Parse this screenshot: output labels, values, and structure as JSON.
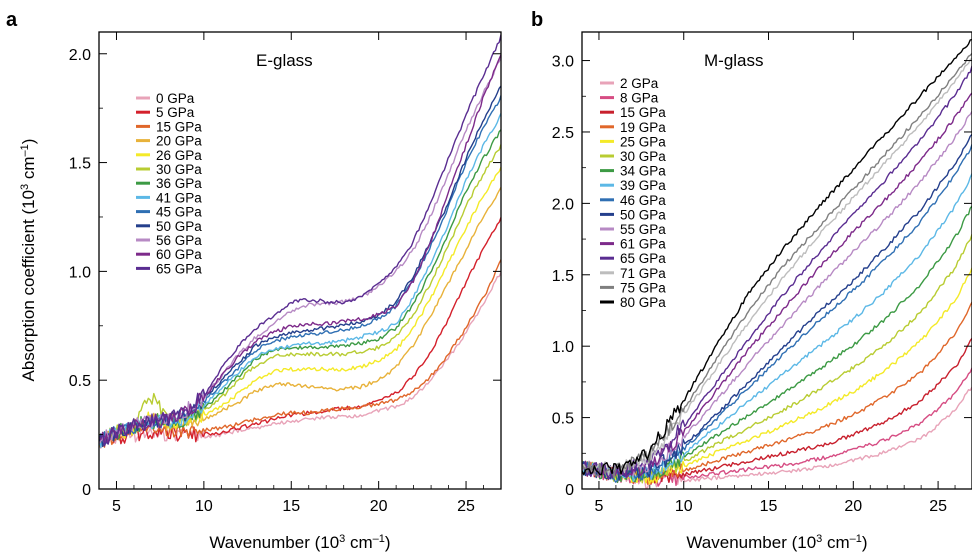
{
  "chart_data": [
    {
      "type": "line",
      "panel_label": "a",
      "title": "E-glass",
      "xlabel": "Wavenumber (10^3 cm^-1)",
      "ylabel": "Absorption coefficient (10^3 cm^-1)",
      "xlim": [
        4,
        27
      ],
      "ylim": [
        0,
        2.1
      ],
      "xticks": [
        5,
        10,
        15,
        20,
        25
      ],
      "yticks": [
        0,
        0.5,
        1.0,
        1.5,
        2.0
      ],
      "ytick_labels": [
        "0",
        "0.5",
        "1.0",
        "1.5",
        "2.0"
      ],
      "grid": false,
      "legend_position": "upper-left",
      "x": [
        4,
        5,
        6,
        7,
        8,
        9,
        10,
        11,
        12,
        13,
        14,
        15,
        16,
        17,
        18,
        19,
        20,
        21,
        22,
        23,
        24,
        25,
        26,
        27
      ],
      "series": [
        {
          "name": "0 GPa",
          "color": "#e8a3b8",
          "values": [
            0.22,
            0.24,
            0.25,
            0.26,
            0.25,
            0.24,
            0.24,
            0.25,
            0.27,
            0.28,
            0.3,
            0.31,
            0.32,
            0.33,
            0.33,
            0.34,
            0.36,
            0.38,
            0.42,
            0.5,
            0.6,
            0.72,
            0.85,
            1.0
          ]
        },
        {
          "name": "5 GPa",
          "color": "#d4202b",
          "values": [
            0.22,
            0.24,
            0.25,
            0.26,
            0.25,
            0.25,
            0.25,
            0.26,
            0.28,
            0.3,
            0.32,
            0.34,
            0.35,
            0.36,
            0.37,
            0.38,
            0.4,
            0.44,
            0.52,
            0.63,
            0.78,
            0.95,
            1.1,
            1.25
          ]
        },
        {
          "name": "15 GPa",
          "color": "#e0672a",
          "values": [
            0.22,
            0.24,
            0.26,
            0.27,
            0.26,
            0.26,
            0.27,
            0.28,
            0.3,
            0.32,
            0.34,
            0.35,
            0.35,
            0.36,
            0.37,
            0.38,
            0.39,
            0.41,
            0.45,
            0.52,
            0.62,
            0.74,
            0.88,
            1.05
          ]
        },
        {
          "name": "20 GPa",
          "color": "#e8b23a",
          "values": [
            0.22,
            0.25,
            0.28,
            0.32,
            0.3,
            0.3,
            0.32,
            0.36,
            0.4,
            0.45,
            0.48,
            0.48,
            0.47,
            0.46,
            0.46,
            0.47,
            0.5,
            0.56,
            0.66,
            0.8,
            0.95,
            1.1,
            1.25,
            1.38
          ]
        },
        {
          "name": "26 GPa",
          "color": "#f4ea28",
          "values": [
            0.22,
            0.25,
            0.28,
            0.33,
            0.31,
            0.31,
            0.34,
            0.38,
            0.44,
            0.5,
            0.54,
            0.55,
            0.55,
            0.55,
            0.55,
            0.56,
            0.59,
            0.64,
            0.74,
            0.88,
            1.04,
            1.2,
            1.35,
            1.48
          ]
        },
        {
          "name": "30 GPa",
          "color": "#b8cc32",
          "values": [
            0.22,
            0.26,
            0.3,
            0.42,
            0.33,
            0.32,
            0.36,
            0.42,
            0.5,
            0.57,
            0.61,
            0.62,
            0.62,
            0.62,
            0.62,
            0.63,
            0.65,
            0.7,
            0.8,
            0.95,
            1.12,
            1.3,
            1.45,
            1.58
          ]
        },
        {
          "name": "36 GPa",
          "color": "#3c9a44",
          "values": [
            0.22,
            0.26,
            0.29,
            0.31,
            0.31,
            0.32,
            0.37,
            0.44,
            0.52,
            0.6,
            0.64,
            0.65,
            0.65,
            0.65,
            0.66,
            0.67,
            0.69,
            0.74,
            0.85,
            1.0,
            1.18,
            1.37,
            1.52,
            1.65
          ]
        },
        {
          "name": "41 GPa",
          "color": "#5cb8e6",
          "values": [
            0.22,
            0.26,
            0.29,
            0.31,
            0.31,
            0.33,
            0.39,
            0.46,
            0.54,
            0.61,
            0.64,
            0.66,
            0.67,
            0.67,
            0.68,
            0.7,
            0.72,
            0.76,
            0.88,
            1.04,
            1.22,
            1.42,
            1.58,
            1.72
          ]
        },
        {
          "name": "45 GPa",
          "color": "#2f6fb3",
          "values": [
            0.22,
            0.26,
            0.29,
            0.31,
            0.32,
            0.34,
            0.4,
            0.48,
            0.56,
            0.64,
            0.68,
            0.7,
            0.71,
            0.72,
            0.73,
            0.75,
            0.78,
            0.84,
            0.96,
            1.12,
            1.3,
            1.5,
            1.66,
            1.8
          ]
        },
        {
          "name": "50 GPa",
          "color": "#243f8c",
          "values": [
            0.22,
            0.26,
            0.29,
            0.31,
            0.32,
            0.35,
            0.41,
            0.5,
            0.58,
            0.66,
            0.7,
            0.72,
            0.73,
            0.74,
            0.75,
            0.77,
            0.8,
            0.86,
            0.98,
            1.14,
            1.32,
            1.52,
            1.7,
            1.85
          ]
        },
        {
          "name": "56 GPa",
          "color": "#b78ac4",
          "values": [
            0.22,
            0.26,
            0.29,
            0.31,
            0.32,
            0.36,
            0.42,
            0.52,
            0.62,
            0.7,
            0.76,
            0.82,
            0.85,
            0.85,
            0.86,
            0.88,
            0.93,
            1.0,
            1.1,
            1.26,
            1.45,
            1.65,
            1.82,
            1.98
          ]
        },
        {
          "name": "60 GPa",
          "color": "#7d2a8a",
          "values": [
            0.22,
            0.26,
            0.29,
            0.31,
            0.32,
            0.36,
            0.42,
            0.52,
            0.61,
            0.68,
            0.72,
            0.75,
            0.76,
            0.76,
            0.77,
            0.78,
            0.8,
            0.84,
            0.96,
            1.14,
            1.36,
            1.58,
            1.8,
            2.0
          ]
        },
        {
          "name": "65 GPa",
          "color": "#5a2d91",
          "values": [
            0.22,
            0.26,
            0.29,
            0.31,
            0.32,
            0.36,
            0.43,
            0.55,
            0.66,
            0.74,
            0.8,
            0.86,
            0.87,
            0.86,
            0.86,
            0.88,
            0.94,
            1.02,
            1.14,
            1.32,
            1.52,
            1.72,
            1.9,
            2.08
          ]
        }
      ]
    },
    {
      "type": "line",
      "panel_label": "b",
      "title": "M-glass",
      "xlabel": "Wavenumber (10^3 cm^-1)",
      "ylabel": "",
      "xlim": [
        4,
        27
      ],
      "ylim": [
        0,
        3.2
      ],
      "xticks": [
        5,
        10,
        15,
        20,
        25
      ],
      "yticks": [
        0,
        0.5,
        1.0,
        1.5,
        2.0,
        2.5,
        3.0
      ],
      "ytick_labels": [
        "0",
        "0.5",
        "1.0",
        "1.5",
        "2.0",
        "2.5",
        "3.0"
      ],
      "grid": false,
      "legend_position": "upper-left",
      "x": [
        4,
        6,
        8,
        10,
        12,
        14,
        16,
        18,
        20,
        22,
        24,
        26,
        27
      ],
      "series": [
        {
          "name": "2 GPa",
          "color": "#e8a3b8",
          "values": [
            0.15,
            0.1,
            0.05,
            0.06,
            0.08,
            0.1,
            0.12,
            0.15,
            0.2,
            0.26,
            0.35,
            0.55,
            0.72
          ]
        },
        {
          "name": "8 GPa",
          "color": "#d64d83",
          "values": [
            0.15,
            0.1,
            0.06,
            0.08,
            0.11,
            0.14,
            0.17,
            0.21,
            0.27,
            0.35,
            0.46,
            0.66,
            0.85
          ]
        },
        {
          "name": "15 GPa",
          "color": "#c8202d",
          "values": [
            0.15,
            0.1,
            0.07,
            0.1,
            0.15,
            0.2,
            0.25,
            0.3,
            0.38,
            0.48,
            0.62,
            0.85,
            1.05
          ]
        },
        {
          "name": "19 GPa",
          "color": "#e0672a",
          "values": [
            0.15,
            0.1,
            0.08,
            0.13,
            0.2,
            0.27,
            0.34,
            0.42,
            0.52,
            0.65,
            0.82,
            1.08,
            1.3
          ]
        },
        {
          "name": "25 GPa",
          "color": "#f4ea28",
          "values": [
            0.15,
            0.1,
            0.08,
            0.16,
            0.26,
            0.35,
            0.45,
            0.56,
            0.68,
            0.84,
            1.04,
            1.32,
            1.55
          ]
        },
        {
          "name": "30 GPa",
          "color": "#b8cc32",
          "values": [
            0.15,
            0.1,
            0.09,
            0.19,
            0.32,
            0.44,
            0.56,
            0.7,
            0.85,
            1.02,
            1.24,
            1.55,
            1.78
          ]
        },
        {
          "name": "34 GPa",
          "color": "#3c9a44",
          "values": [
            0.15,
            0.1,
            0.1,
            0.22,
            0.38,
            0.53,
            0.68,
            0.84,
            1.01,
            1.2,
            1.44,
            1.76,
            1.98
          ]
        },
        {
          "name": "39 GPa",
          "color": "#5cb8e6",
          "values": [
            0.15,
            0.1,
            0.11,
            0.25,
            0.44,
            0.63,
            0.82,
            1.0,
            1.19,
            1.4,
            1.65,
            1.98,
            2.2
          ]
        },
        {
          "name": "46 GPa",
          "color": "#2f6fb3",
          "values": [
            0.15,
            0.1,
            0.12,
            0.28,
            0.5,
            0.73,
            0.96,
            1.18,
            1.39,
            1.62,
            1.88,
            2.2,
            2.4
          ]
        },
        {
          "name": "50 GPa",
          "color": "#243f8c",
          "values": [
            0.15,
            0.1,
            0.13,
            0.3,
            0.53,
            0.77,
            1.01,
            1.24,
            1.46,
            1.7,
            1.96,
            2.28,
            2.48
          ]
        },
        {
          "name": "55 GPa",
          "color": "#b78ac4",
          "values": [
            0.15,
            0.11,
            0.15,
            0.36,
            0.63,
            0.91,
            1.17,
            1.42,
            1.66,
            1.9,
            2.16,
            2.46,
            2.64
          ]
        },
        {
          "name": "61 GPa",
          "color": "#7d2a8a",
          "values": [
            0.15,
            0.11,
            0.16,
            0.4,
            0.7,
            1.0,
            1.28,
            1.55,
            1.8,
            2.04,
            2.3,
            2.6,
            2.78
          ]
        },
        {
          "name": "65 GPa",
          "color": "#5a2d91",
          "values": [
            0.15,
            0.12,
            0.18,
            0.44,
            0.76,
            1.08,
            1.38,
            1.66,
            1.92,
            2.18,
            2.45,
            2.76,
            2.95
          ]
        },
        {
          "name": "71 GPa",
          "color": "#bdbdbd",
          "values": [
            0.15,
            0.13,
            0.22,
            0.52,
            0.86,
            1.2,
            1.5,
            1.78,
            2.04,
            2.3,
            2.56,
            2.86,
            3.02
          ]
        },
        {
          "name": "75 GPa",
          "color": "#7f7f7f",
          "values": [
            0.15,
            0.13,
            0.24,
            0.56,
            0.92,
            1.28,
            1.58,
            1.84,
            2.1,
            2.36,
            2.62,
            2.9,
            3.05
          ]
        },
        {
          "name": "80 GPa",
          "color": "#000000",
          "values": [
            0.15,
            0.14,
            0.26,
            0.62,
            1.02,
            1.4,
            1.7,
            1.98,
            2.24,
            2.5,
            2.76,
            3.02,
            3.15
          ]
        }
      ]
    }
  ]
}
